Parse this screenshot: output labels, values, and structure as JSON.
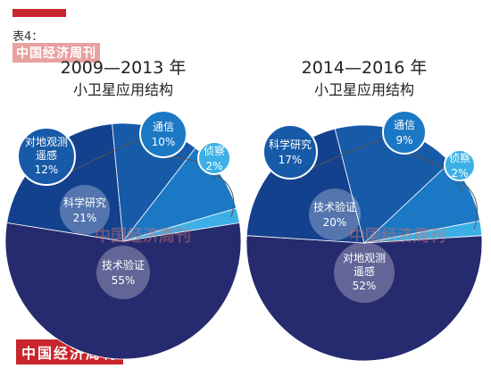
{
  "header": {
    "table_label": "表4：",
    "brand": "中国经济周刊",
    "accent_color": "#c9252c"
  },
  "watermark": "中国经济周刊",
  "chart_data": [
    {
      "type": "pie",
      "title": "2009—2013 年",
      "subtitle": "小卫星应用结构",
      "slices": [
        {
          "name": "技术验证",
          "value": 55,
          "label": "55%",
          "color": "#262a6e"
        },
        {
          "name": "科学研究",
          "value": 21,
          "label": "21%",
          "color": "#13418e"
        },
        {
          "name": "对地观测遥感",
          "value": 12,
          "label": "12%",
          "color": "#175aa8"
        },
        {
          "name": "通信",
          "value": 10,
          "label": "10%",
          "color": "#1b78c4"
        },
        {
          "name": "侦察",
          "value": 2,
          "label": "2%",
          "color": "#3cb0e6"
        }
      ]
    },
    {
      "type": "pie",
      "title": "2014—2016 年",
      "subtitle": "小卫星应用结构",
      "slices": [
        {
          "name": "对地观测遥感",
          "value": 52,
          "label": "52%",
          "color": "#262a6e"
        },
        {
          "name": "技术验证",
          "value": 20,
          "label": "20%",
          "color": "#13418e"
        },
        {
          "name": "科学研究",
          "value": 17,
          "label": "17%",
          "color": "#175aa8"
        },
        {
          "name": "通信",
          "value": 9,
          "label": "9%",
          "color": "#1b78c4"
        },
        {
          "name": "侦察",
          "value": 2,
          "label": "2%",
          "color": "#3cb0e6"
        }
      ]
    }
  ]
}
